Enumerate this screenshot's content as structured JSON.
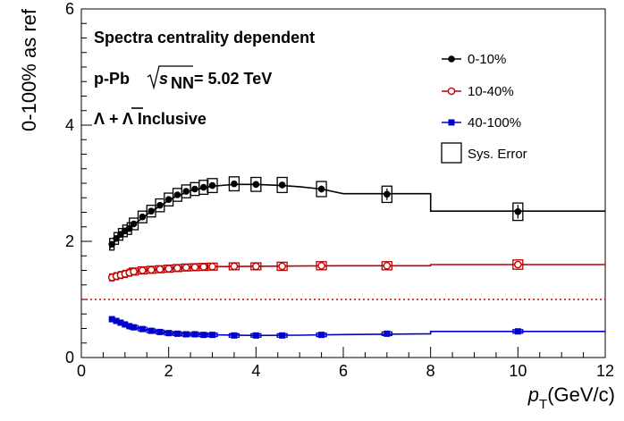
{
  "chart_data": {
    "type": "scatter",
    "ylabel": "0-100% as ref",
    "xlabel_main": "p",
    "xlabel_sub": "T",
    "xlabel_unit": "(GeV/c)",
    "xlim": [
      0,
      12
    ],
    "ylim": [
      0,
      6
    ],
    "x_ticks": [
      "0",
      "2",
      "4",
      "6",
      "8",
      "10",
      "12"
    ],
    "y_ticks": [
      "0",
      "2",
      "4",
      "6"
    ],
    "grid": false,
    "legend_position": "top-right",
    "reference_line": {
      "y": 1.0,
      "color": "#d00000",
      "style": "dotted"
    },
    "annotations": {
      "line1": "Spectra centrality dependent",
      "line2_prefix": "p-Pb",
      "line2_s": "s",
      "line2_sub": "NN",
      "line2_suffix": "= 5.02 TeV",
      "line3": "Λ + Λ Inclusive"
    },
    "sys_error_label": "Sys. Error",
    "series": [
      {
        "name": "0-10%",
        "color": "#000000",
        "marker": "filled-circle",
        "x": [
          0.7,
          0.8,
          0.9,
          1.0,
          1.1,
          1.2,
          1.4,
          1.6,
          1.8,
          2.0,
          2.2,
          2.4,
          2.6,
          2.8,
          3.0,
          3.5,
          4.0,
          4.6,
          5.5,
          7.0,
          10.0
        ],
        "y": [
          1.95,
          2.05,
          2.12,
          2.18,
          2.22,
          2.3,
          2.42,
          2.52,
          2.62,
          2.72,
          2.8,
          2.86,
          2.9,
          2.93,
          2.96,
          2.99,
          2.98,
          2.97,
          2.9,
          2.81,
          2.51
        ],
        "xerr": [
          0.05,
          0.05,
          0.05,
          0.05,
          0.05,
          0.1,
          0.1,
          0.1,
          0.1,
          0.1,
          0.1,
          0.1,
          0.1,
          0.1,
          0.25,
          0.25,
          0.35,
          0.5,
          0.5,
          1.0,
          2.0
        ],
        "yerr_stat": [
          0.02,
          0.02,
          0.02,
          0.02,
          0.02,
          0.02,
          0.02,
          0.02,
          0.02,
          0.02,
          0.02,
          0.02,
          0.02,
          0.02,
          0.02,
          0.03,
          0.03,
          0.04,
          0.06,
          0.1,
          0.12
        ],
        "yerr_sys": [
          0.1,
          0.1,
          0.1,
          0.1,
          0.1,
          0.1,
          0.1,
          0.1,
          0.11,
          0.11,
          0.11,
          0.11,
          0.11,
          0.12,
          0.12,
          0.12,
          0.12,
          0.13,
          0.13,
          0.14,
          0.15
        ]
      },
      {
        "name": "10-40%",
        "color": "#c00000",
        "marker": "open-circle",
        "x": [
          0.7,
          0.8,
          0.9,
          1.0,
          1.1,
          1.2,
          1.4,
          1.6,
          1.8,
          2.0,
          2.2,
          2.4,
          2.6,
          2.8,
          3.0,
          3.5,
          4.0,
          4.6,
          5.5,
          7.0,
          10.0
        ],
        "y": [
          1.38,
          1.4,
          1.42,
          1.44,
          1.46,
          1.48,
          1.5,
          1.51,
          1.52,
          1.53,
          1.54,
          1.55,
          1.555,
          1.56,
          1.565,
          1.57,
          1.57,
          1.57,
          1.58,
          1.58,
          1.6
        ],
        "xerr": [
          0.05,
          0.05,
          0.05,
          0.05,
          0.05,
          0.1,
          0.1,
          0.1,
          0.1,
          0.1,
          0.1,
          0.1,
          0.1,
          0.1,
          0.25,
          0.25,
          0.35,
          0.5,
          0.5,
          1.0,
          2.0
        ],
        "yerr_stat": [
          0.01,
          0.01,
          0.01,
          0.01,
          0.01,
          0.01,
          0.01,
          0.01,
          0.01,
          0.01,
          0.01,
          0.01,
          0.01,
          0.01,
          0.01,
          0.01,
          0.01,
          0.02,
          0.02,
          0.02,
          0.03
        ],
        "yerr_sys": [
          0.06,
          0.06,
          0.06,
          0.06,
          0.06,
          0.06,
          0.06,
          0.06,
          0.06,
          0.06,
          0.06,
          0.06,
          0.06,
          0.06,
          0.06,
          0.06,
          0.06,
          0.07,
          0.07,
          0.07,
          0.08
        ]
      },
      {
        "name": "40-100%",
        "color": "#0000cc",
        "marker": "filled-square",
        "x": [
          0.7,
          0.8,
          0.9,
          1.0,
          1.1,
          1.2,
          1.4,
          1.6,
          1.8,
          2.0,
          2.2,
          2.4,
          2.6,
          2.8,
          3.0,
          3.5,
          4.0,
          4.6,
          5.5,
          7.0,
          10.0
        ],
        "y": [
          0.66,
          0.63,
          0.6,
          0.57,
          0.54,
          0.52,
          0.49,
          0.46,
          0.44,
          0.42,
          0.41,
          0.4,
          0.4,
          0.39,
          0.39,
          0.38,
          0.38,
          0.38,
          0.39,
          0.41,
          0.45
        ],
        "xerr": [
          0.05,
          0.05,
          0.05,
          0.05,
          0.05,
          0.1,
          0.1,
          0.1,
          0.1,
          0.1,
          0.1,
          0.1,
          0.1,
          0.1,
          0.25,
          0.25,
          0.35,
          0.5,
          0.5,
          1.0,
          2.0
        ],
        "yerr_stat": [
          0.01,
          0.01,
          0.01,
          0.01,
          0.01,
          0.01,
          0.01,
          0.01,
          0.01,
          0.01,
          0.01,
          0.01,
          0.01,
          0.01,
          0.01,
          0.01,
          0.01,
          0.01,
          0.01,
          0.01,
          0.02
        ],
        "yerr_sys": [
          0.03,
          0.03,
          0.03,
          0.03,
          0.03,
          0.03,
          0.03,
          0.03,
          0.03,
          0.03,
          0.03,
          0.03,
          0.03,
          0.03,
          0.03,
          0.03,
          0.03,
          0.03,
          0.03,
          0.03,
          0.03
        ]
      }
    ],
    "fit_curves": [
      {
        "series": "0-10%",
        "color": "#000000",
        "points": [
          [
            0.65,
            1.88
          ],
          [
            0.8,
            2.03
          ],
          [
            1.0,
            2.16
          ],
          [
            1.2,
            2.29
          ],
          [
            1.5,
            2.46
          ],
          [
            1.8,
            2.61
          ],
          [
            2.1,
            2.75
          ],
          [
            2.5,
            2.87
          ],
          [
            3.0,
            2.95
          ],
          [
            3.5,
            2.98
          ],
          [
            4.0,
            2.98
          ],
          [
            4.6,
            2.96
          ],
          [
            5.0,
            2.94
          ],
          [
            5.5,
            2.9
          ],
          [
            6.0,
            2.82
          ],
          [
            8.0,
            2.82
          ],
          [
            8.0,
            2.52
          ],
          [
            12.0,
            2.52
          ]
        ]
      },
      {
        "series": "10-40%",
        "color": "#c00000",
        "points": [
          [
            0.65,
            1.37
          ],
          [
            0.9,
            1.42
          ],
          [
            1.2,
            1.47
          ],
          [
            1.6,
            1.51
          ],
          [
            2.0,
            1.53
          ],
          [
            2.5,
            1.555
          ],
          [
            3.0,
            1.565
          ],
          [
            4.0,
            1.57
          ],
          [
            5.0,
            1.575
          ],
          [
            6.0,
            1.58
          ],
          [
            8.0,
            1.58
          ],
          [
            8.0,
            1.6
          ],
          [
            12.0,
            1.6
          ]
        ]
      },
      {
        "series": "40-100%",
        "color": "#0000cc",
        "points": [
          [
            0.65,
            0.67
          ],
          [
            0.9,
            0.6
          ],
          [
            1.2,
            0.52
          ],
          [
            1.6,
            0.46
          ],
          [
            2.0,
            0.42
          ],
          [
            2.5,
            0.4
          ],
          [
            3.0,
            0.39
          ],
          [
            4.0,
            0.38
          ],
          [
            5.0,
            0.385
          ],
          [
            6.0,
            0.395
          ],
          [
            8.0,
            0.41
          ],
          [
            8.0,
            0.45
          ],
          [
            12.0,
            0.45
          ]
        ]
      }
    ]
  }
}
